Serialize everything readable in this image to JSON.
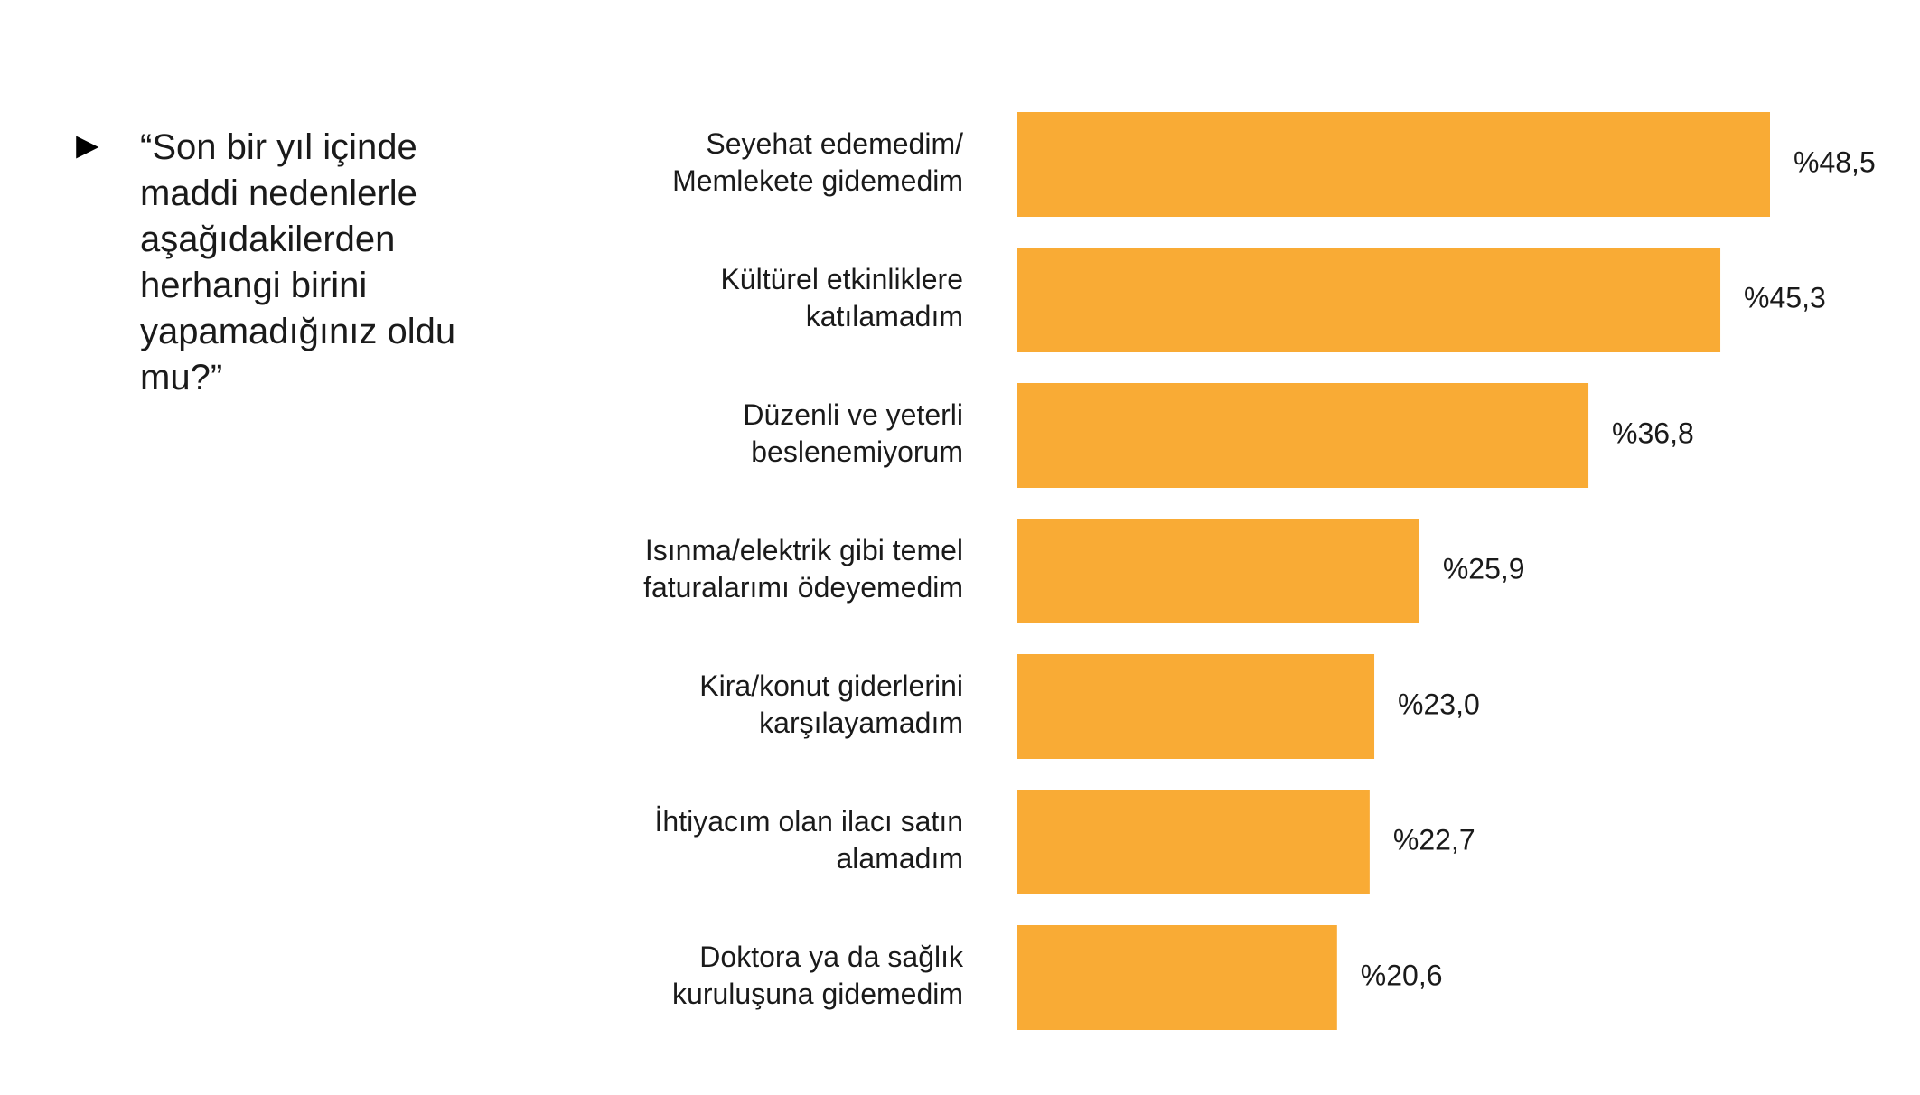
{
  "question": {
    "bullet": "►",
    "text": "“Son bir yıl içinde maddi nedenlerle aşağıdakilerden herhangi birini yapamadığınız oldu mu?”"
  },
  "colors": {
    "bar": "#F9AB35",
    "text": "#1a1a1a"
  },
  "chart_data": {
    "type": "bar",
    "orientation": "horizontal",
    "categories": [
      [
        "Seyehat edemedim/",
        "Memlekete gidemedim"
      ],
      [
        "Kültürel etkinliklere",
        "katılamadım"
      ],
      [
        "Düzenli ve yeterli",
        "beslenemiyorum"
      ],
      [
        "Isınma/elektrik gibi temel",
        "faturalarımı ödeyemedim"
      ],
      [
        "Kira/konut giderlerini",
        "karşılayamadım"
      ],
      [
        "İhtiyacım olan ilacı satın",
        "alamadım"
      ],
      [
        "Doktora ya da sağlık",
        "kuruluşuna gidemedim"
      ]
    ],
    "values": [
      48.5,
      45.3,
      36.8,
      25.9,
      23.0,
      22.7,
      20.6
    ],
    "value_labels": [
      "%48,5",
      "%45,3",
      "%36,8",
      "%25,9",
      "%23,0",
      "%22,7",
      "%20,6"
    ],
    "xlim": [
      0,
      48.5
    ],
    "grid": false,
    "legend": "none"
  }
}
